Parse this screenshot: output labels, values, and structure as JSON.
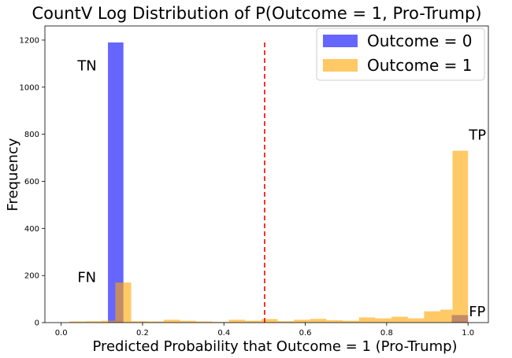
{
  "chart_data": {
    "type": "bar",
    "title": "CountV Log Distribution of P(Outcome = 1, Pro-Trump)",
    "xlabel": "Predicted Probability that Outcome = 1 (Pro-Trump)",
    "ylabel": "Frequency",
    "xlim": [
      -0.04,
      1.05
    ],
    "ylim": [
      0,
      1260
    ],
    "xticks": [
      0.0,
      0.2,
      0.4,
      0.6,
      0.8,
      1.0
    ],
    "xtick_labels": [
      "0.0",
      "0.2",
      "0.4",
      "0.6",
      "0.8",
      "1.0"
    ],
    "yticks": [
      0,
      200,
      400,
      600,
      800,
      1000,
      1200
    ],
    "ytick_labels": [
      "0",
      "200",
      "400",
      "600",
      "800",
      "1000",
      "1200"
    ],
    "grid": false,
    "legend_position": "top-right",
    "threshold_line": {
      "x": 0.5,
      "y_top": 1200,
      "color": "#ff0000",
      "style": "dashed"
    },
    "series": [
      {
        "name": "Outcome = 0",
        "color": "#0000ff",
        "opacity": 0.6,
        "bins": [
          {
            "x0": 0.115,
            "x1": 0.153,
            "value": 1190
          },
          {
            "x0": 0.96,
            "x1": 1.0,
            "value": 32
          }
        ]
      },
      {
        "name": "Outcome = 1",
        "color": "#ffa500",
        "opacity": 0.6,
        "bins": [
          {
            "x0": 0.02,
            "x1": 0.06,
            "value": 5
          },
          {
            "x0": 0.06,
            "x1": 0.1,
            "value": 6
          },
          {
            "x0": 0.1,
            "x1": 0.133,
            "value": 8
          },
          {
            "x0": 0.133,
            "x1": 0.172,
            "value": 170
          },
          {
            "x0": 0.172,
            "x1": 0.212,
            "value": 6
          },
          {
            "x0": 0.212,
            "x1": 0.252,
            "value": 5
          },
          {
            "x0": 0.252,
            "x1": 0.292,
            "value": 12
          },
          {
            "x0": 0.292,
            "x1": 0.332,
            "value": 8
          },
          {
            "x0": 0.332,
            "x1": 0.372,
            "value": 5
          },
          {
            "x0": 0.372,
            "x1": 0.412,
            "value": 3
          },
          {
            "x0": 0.412,
            "x1": 0.452,
            "value": 12
          },
          {
            "x0": 0.452,
            "x1": 0.492,
            "value": 8
          },
          {
            "x0": 0.492,
            "x1": 0.532,
            "value": 15
          },
          {
            "x0": 0.532,
            "x1": 0.572,
            "value": 6
          },
          {
            "x0": 0.572,
            "x1": 0.612,
            "value": 12
          },
          {
            "x0": 0.612,
            "x1": 0.652,
            "value": 16
          },
          {
            "x0": 0.652,
            "x1": 0.692,
            "value": 10
          },
          {
            "x0": 0.692,
            "x1": 0.732,
            "value": 8
          },
          {
            "x0": 0.732,
            "x1": 0.772,
            "value": 22
          },
          {
            "x0": 0.772,
            "x1": 0.812,
            "value": 18
          },
          {
            "x0": 0.812,
            "x1": 0.852,
            "value": 25
          },
          {
            "x0": 0.852,
            "x1": 0.892,
            "value": 18
          },
          {
            "x0": 0.892,
            "x1": 0.932,
            "value": 48
          },
          {
            "x0": 0.932,
            "x1": 0.962,
            "value": 55
          },
          {
            "x0": 0.962,
            "x1": 1.0,
            "value": 730
          }
        ]
      }
    ],
    "annotations": [
      {
        "text": "TN",
        "x": 0.04,
        "y": 1095
      },
      {
        "text": "FN",
        "x": 0.04,
        "y": 195
      },
      {
        "text": "TP",
        "x": 1.002,
        "y": 800
      },
      {
        "text": "FP",
        "x": 1.002,
        "y": 50
      }
    ]
  }
}
